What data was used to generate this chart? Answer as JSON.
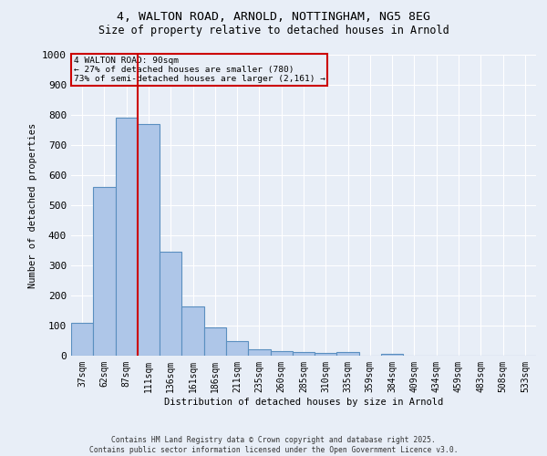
{
  "title_line1": "4, WALTON ROAD, ARNOLD, NOTTINGHAM, NG5 8EG",
  "title_line2": "Size of property relative to detached houses in Arnold",
  "xlabel": "Distribution of detached houses by size in Arnold",
  "ylabel": "Number of detached properties",
  "categories": [
    "37sqm",
    "62sqm",
    "87sqm",
    "111sqm",
    "136sqm",
    "161sqm",
    "186sqm",
    "211sqm",
    "235sqm",
    "260sqm",
    "285sqm",
    "310sqm",
    "335sqm",
    "359sqm",
    "384sqm",
    "409sqm",
    "434sqm",
    "459sqm",
    "483sqm",
    "508sqm",
    "533sqm"
  ],
  "values": [
    110,
    560,
    790,
    770,
    345,
    165,
    95,
    50,
    20,
    15,
    12,
    8,
    12,
    0,
    5,
    0,
    0,
    0,
    0,
    0,
    0
  ],
  "bar_color": "#aec6e8",
  "bar_edge_color": "#5a8fc0",
  "bg_color": "#e8eef7",
  "grid_color": "#ffffff",
  "vline_color": "#cc0000",
  "annotation_line1": "4 WALTON ROAD: 90sqm",
  "annotation_line2": "← 27% of detached houses are smaller (780)",
  "annotation_line3": "73% of semi-detached houses are larger (2,161) →",
  "annotation_box_color": "#cc0000",
  "ylim": [
    0,
    1000
  ],
  "yticks": [
    0,
    100,
    200,
    300,
    400,
    500,
    600,
    700,
    800,
    900,
    1000
  ],
  "footer_line1": "Contains HM Land Registry data © Crown copyright and database right 2025.",
  "footer_line2": "Contains public sector information licensed under the Open Government Licence v3.0."
}
